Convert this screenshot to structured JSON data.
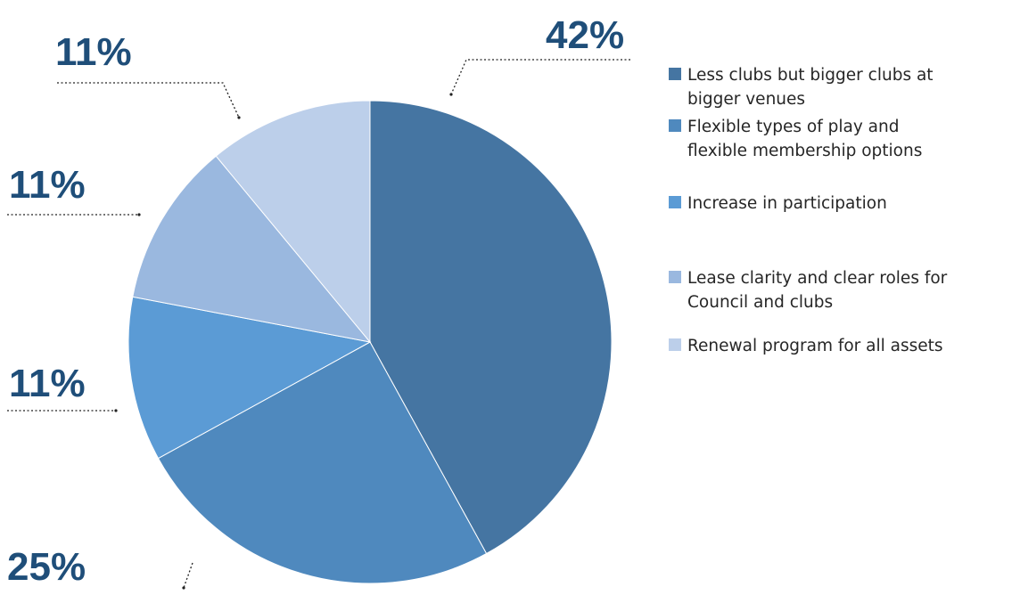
{
  "chart_data": {
    "type": "pie",
    "title": "",
    "start_angle_deg": 0,
    "direction": "clockwise",
    "legend_position": "right",
    "slices": [
      {
        "label": "Less clubs but bigger clubs at bigger venues",
        "legend_lines": [
          "Less clubs but bigger clubs at",
          "bigger venues"
        ],
        "value": 42,
        "display": "42%",
        "color": "#4575a2"
      },
      {
        "label": "Flexible types of play and flexible membership options",
        "legend_lines": [
          "Flexible types of play and",
          "flexible membership options"
        ],
        "value": 25,
        "display": "25%",
        "color": "#4f89be"
      },
      {
        "label": "Increase in participation",
        "legend_lines": [
          "Increase in participation"
        ],
        "value": 11,
        "display": "11%",
        "color": "#5b9bd5"
      },
      {
        "label": "Lease clarity and clear roles for Council and clubs",
        "legend_lines": [
          "Lease clarity and clear roles for",
          "Council and clubs"
        ],
        "value": 11,
        "display": "11%",
        "color": "#9ab8df"
      },
      {
        "label": "Renewal program for all assets",
        "legend_lines": [
          "Renewal program for all assets"
        ],
        "value": 11,
        "display": "11%",
        "color": "#bccfea"
      }
    ]
  }
}
